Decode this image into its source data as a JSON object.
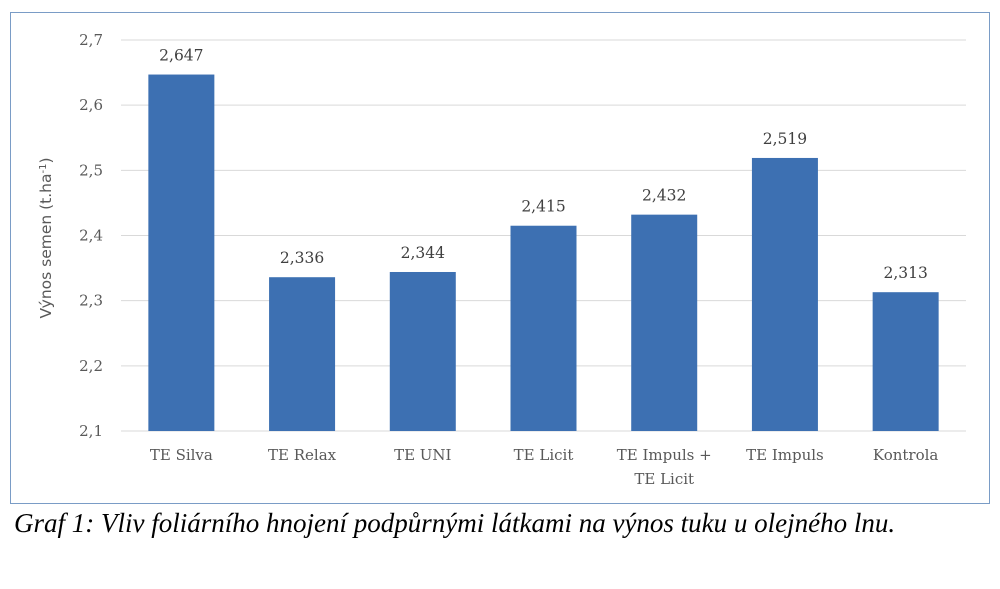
{
  "chart_data": {
    "type": "bar",
    "categories": [
      "TE Silva",
      "TE Relax",
      "TE UNI",
      "TE Licit",
      "TE Impuls +\nTE Licit",
      "TE Impuls",
      "Kontrola"
    ],
    "values": [
      2.647,
      2.336,
      2.344,
      2.415,
      2.432,
      2.519,
      2.313
    ],
    "data_labels": [
      "2,647",
      "2,336",
      "2,344",
      "2,415",
      "2,432",
      "2,519",
      "2,313"
    ],
    "ylabel": "Výnos semen (t.ha-1)",
    "ylabel_main": "Výnos  semen (t.ha",
    "ylabel_sup": "-1",
    "ylabel_close": ")",
    "ylim": [
      2.1,
      2.7
    ],
    "yticks": [
      2.1,
      2.2,
      2.3,
      2.4,
      2.5,
      2.6,
      2.7
    ],
    "ytick_labels": [
      "2,1",
      "2,2",
      "2,3",
      "2,4",
      "2,5",
      "2,6",
      "2,7"
    ],
    "grid": true,
    "bar_color": "#3d70b2",
    "grid_color": "#d9d9d9"
  },
  "caption": "Graf 1: Vliv foliárního hnojení podpůrnými látkami na výnos tuku u olejného lnu."
}
